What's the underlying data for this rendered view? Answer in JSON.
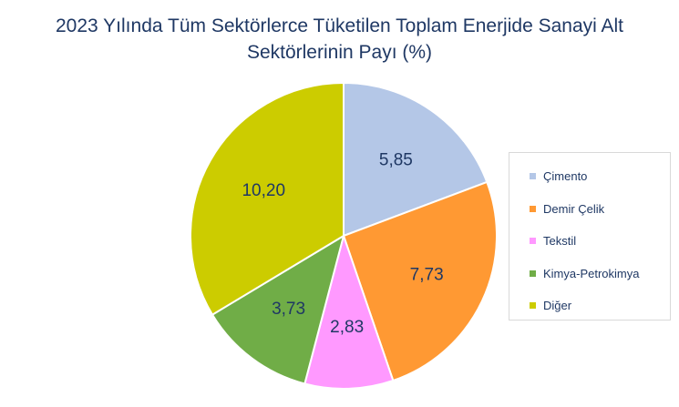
{
  "title_line1": "2023 Yılında Tüm Sektörlerce Tüketilen Toplam Enerjide Sanayi Alt",
  "title_line2": "Sektörlerinin Payı (%)",
  "chart_data": {
    "type": "pie",
    "title": "2023 Yılında Tüm Sektörlerce Tüketilen Toplam Enerjide Sanayi Alt Sektörlerinin Payı (%)",
    "categories": [
      "Çimento",
      "Demir Çelik",
      "Tekstil",
      "Kimya-Petrokimya",
      "Diğer"
    ],
    "values": [
      5.85,
      7.73,
      2.83,
      3.73,
      10.2
    ],
    "data_labels": [
      "5,85",
      "7,73",
      "2,83",
      "3,73",
      "10,20"
    ],
    "colors": [
      "#b4c7e7",
      "#ff9933",
      "#ff99ff",
      "#70ad47",
      "#cccc00"
    ],
    "legend_position": "right"
  }
}
